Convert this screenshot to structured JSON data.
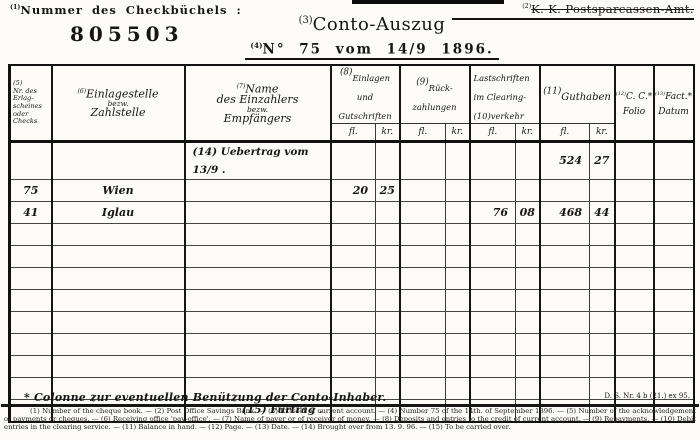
{
  "page": {
    "checkbook_ref": "(1)",
    "checkbook_label": "Nummer des Checkbüchels :",
    "checkbook_number": "805503",
    "office_ref": "(2)",
    "office_name": "K. K. Postsparcassen-Amt.",
    "title_ref": "(3)",
    "title": "Conto-Auszug",
    "subtitle_ref": "(4)",
    "subtitle": "N° 75 vom 14/9 1896."
  },
  "table": {
    "headers": {
      "nr": {
        "text": "(5)\nNr. des\nErlag-\nscheines\noder\nChecks"
      },
      "stelle": {
        "ref": "(6)",
        "top": "Einlagestelle",
        "mid": "bezw.",
        "bottom": "Zahlstelle"
      },
      "name": {
        "ref": "(7)",
        "top": "Name\ndes Einzahlers",
        "mid": "bezw.",
        "bottom": "Empfängers"
      },
      "einlagen": {
        "ref": "(8)",
        "text": "Einlagen\nund\nGutschriften"
      },
      "rueck": {
        "ref": "(9)",
        "text": "Rück-\nzahlungen"
      },
      "last": {
        "text": "Lastschriften\nim Clearing-\n(10)verkehr"
      },
      "guthaben": {
        "ref": "(11)",
        "text": "Guthaben"
      },
      "folio": {
        "ref": "(12)",
        "text": "C. C.*\nFolio"
      },
      "datum": {
        "ref": "(13)",
        "text": "Fact.*\nDatum"
      },
      "fl": "fl.",
      "kr": "kr."
    },
    "row_fields": [
      "nr",
      "stelle",
      "name",
      "e_fl",
      "e_kr",
      "r_fl",
      "r_kr",
      "l_fl",
      "l_kr",
      "g_fl",
      "g_kr",
      "folio",
      "datum"
    ],
    "rows": [
      {
        "name": "(14) Uebertrag vom 13/9   .",
        "name_align": "left",
        "g_fl": "524",
        "g_kr": "27"
      },
      {
        "nr": "75",
        "stelle": "Wien",
        "e_fl": "20",
        "e_kr": "25"
      },
      {
        "nr": "41",
        "stelle": "Iglau",
        "l_fl": "76",
        "l_kr": "08",
        "g_fl": "468",
        "g_kr": "44"
      },
      {},
      {},
      {},
      {},
      {},
      {},
      {},
      {},
      {
        "name": "(15) Fürtrag   .",
        "name_align": "right"
      }
    ]
  },
  "footer": {
    "note": "* Colonne zur eventuellen Benützung der Conto-Inhaber.",
    "form_number": "D. S. Nr. 4 b (21.) ex 95.",
    "legend": "(1) Number of the cheque book. — (2) Post Office Savings Bank. — (3) Extract of current account. — (4) Number 75 of the 14th. of September 1896. — (5) Number of the acknowledgement of payments or cheques. — (6) Receiving office 'pay-office'. — (7) Name of payer or of receiver of money. — (8) Deposits and entries to the credit of current account. — (9) Repayments. — (10) Debit entries in the clearing service. — (11) Balance in hand. — (12) Page. — (13) Date. — (14) Brought over from 13. 9. 96. — (15) To be carried over."
  }
}
